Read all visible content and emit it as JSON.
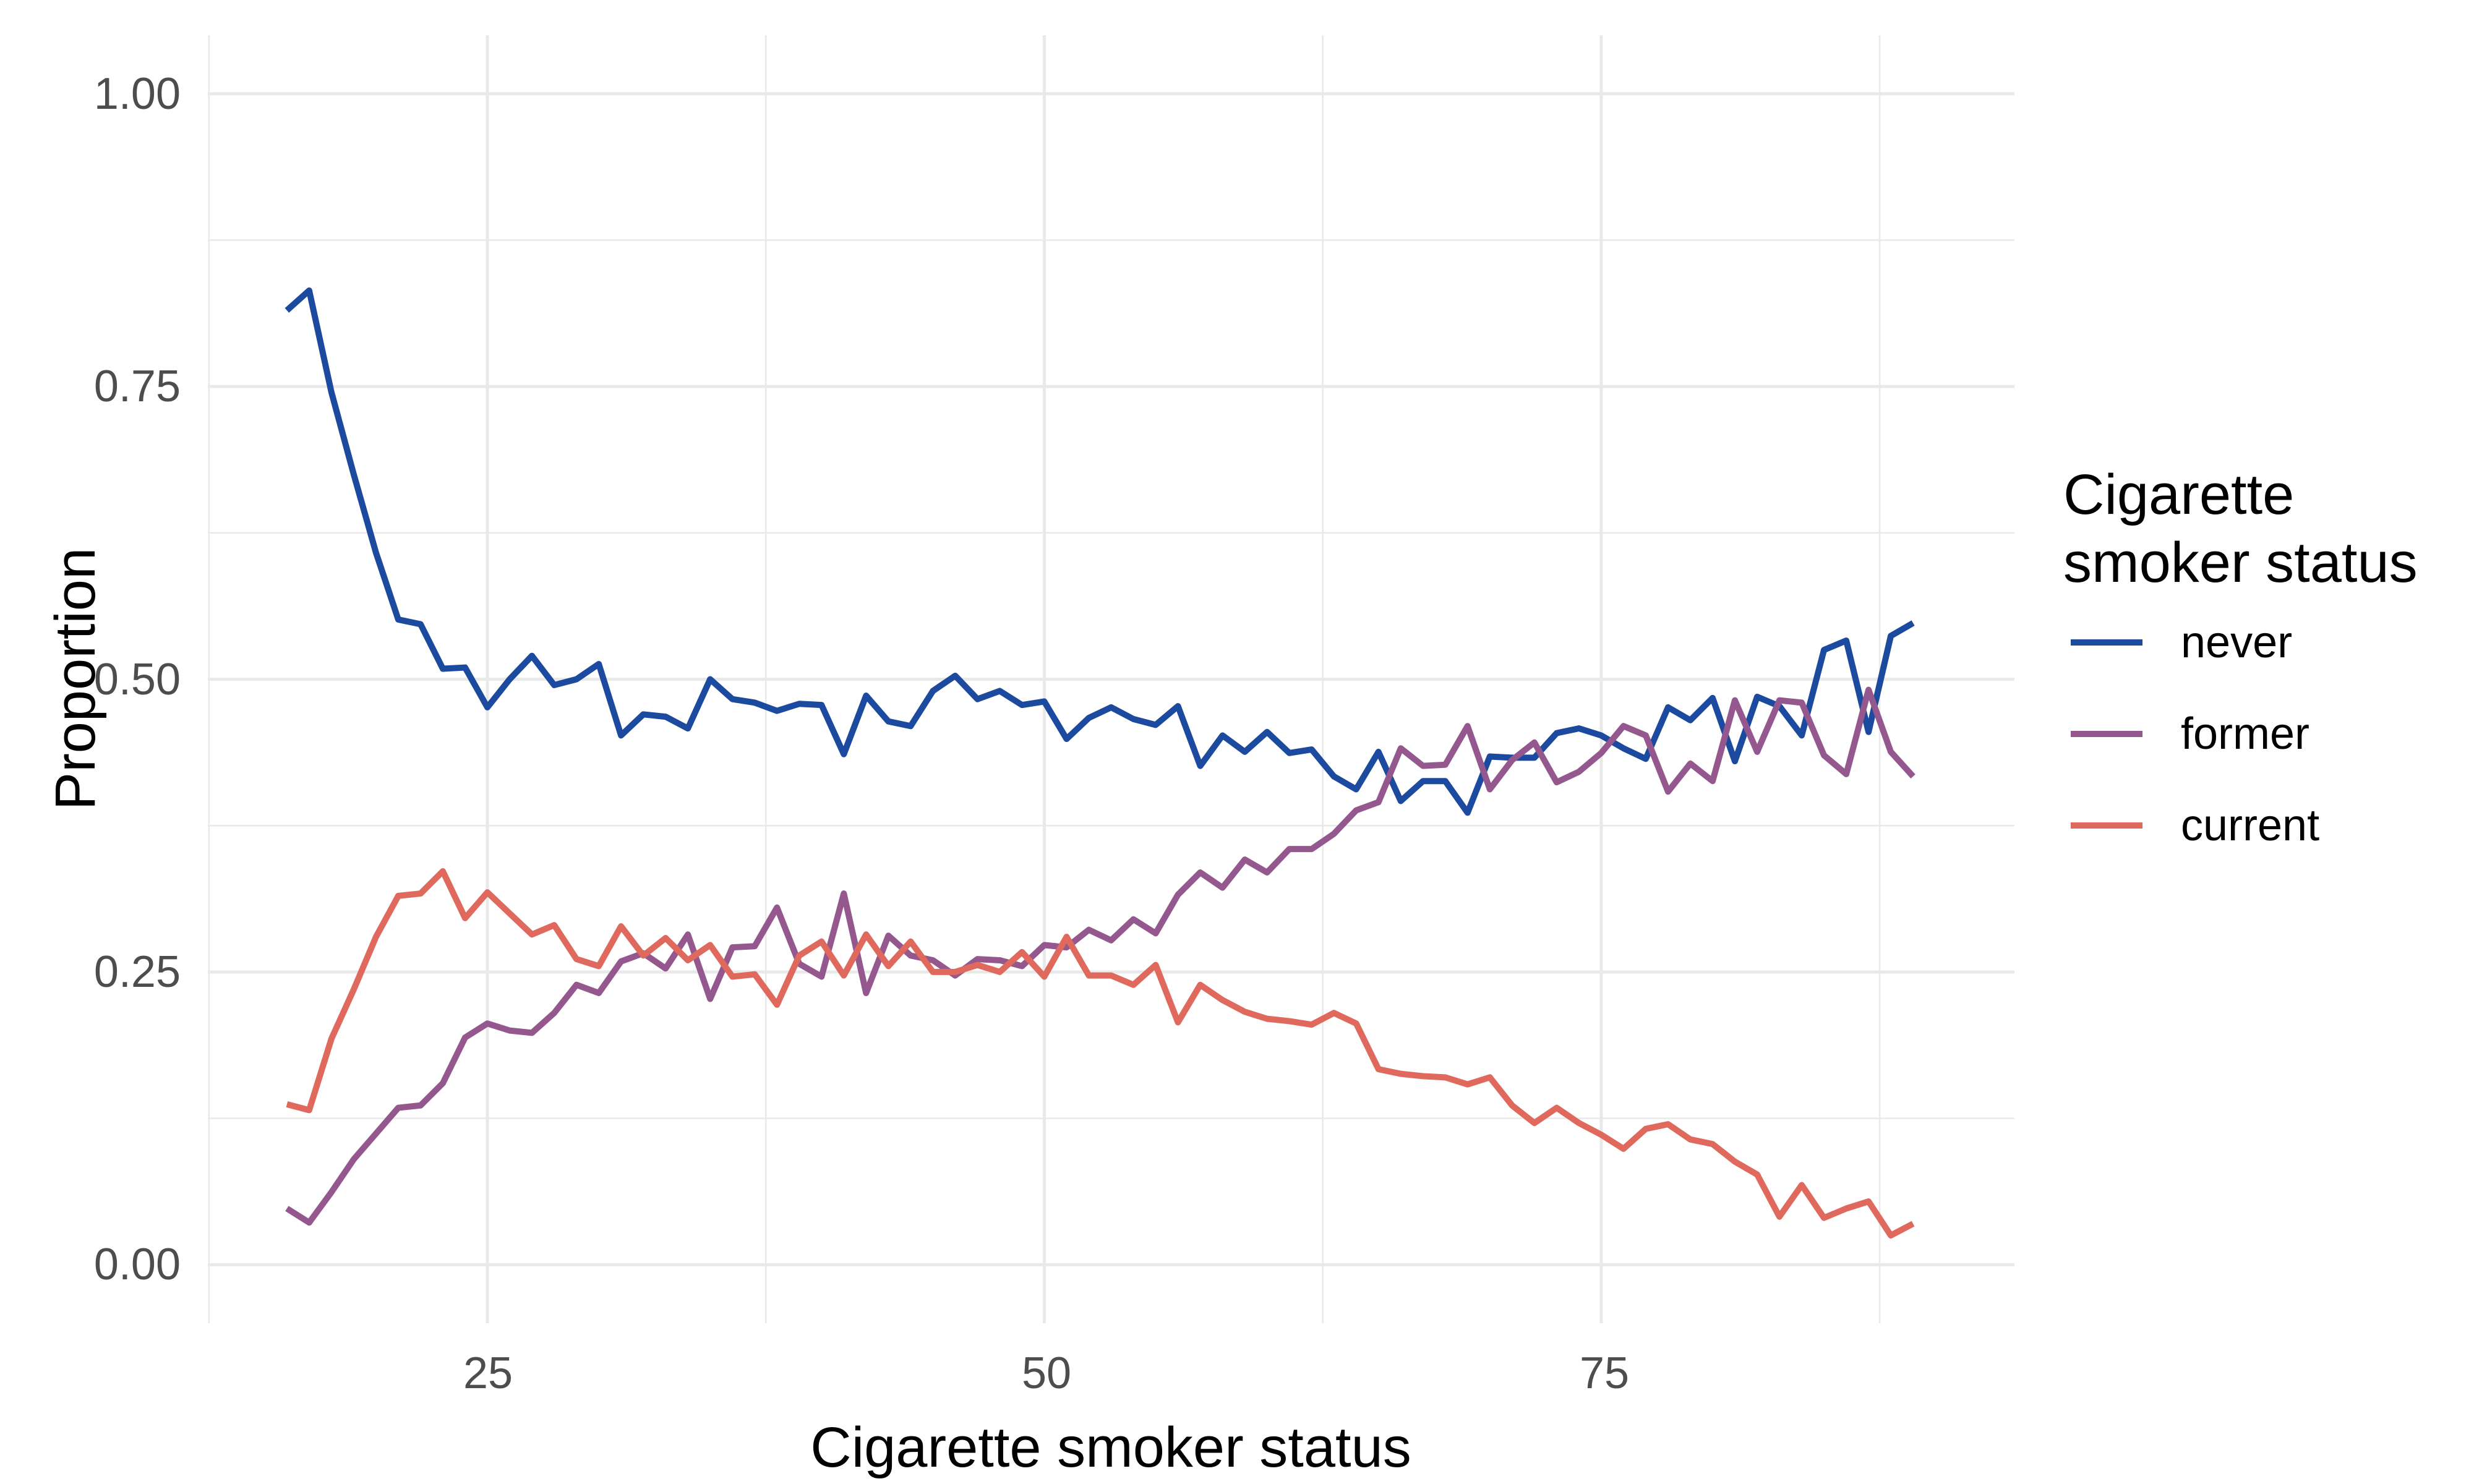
{
  "axes": {
    "x": {
      "title": "Cigarette smoker status",
      "tick_labels": [
        "25",
        "50",
        "75"
      ]
    },
    "y": {
      "title": "Proportion",
      "tick_labels": [
        "1.00",
        "0.75",
        "0.50",
        "0.25",
        "0.00"
      ]
    }
  },
  "legend": {
    "title": "Cigarette smoker status",
    "items": [
      {
        "label": "never",
        "color": "#1B4A9F"
      },
      {
        "label": "former",
        "color": "#94588E"
      },
      {
        "label": "current",
        "color": "#E0695E"
      }
    ]
  },
  "chart_data": {
    "type": "line",
    "title": "",
    "xlabel": "Cigarette smoker status",
    "ylabel": "Proportion",
    "legend_position": "right",
    "xlim": [
      12.45,
      93.55
    ],
    "ylim": [
      -0.05,
      1.05
    ],
    "x_ticks": [
      25,
      50,
      75
    ],
    "x_minor": [
      12.5,
      37.5,
      62.5,
      87.5
    ],
    "y_ticks": [
      0,
      0.25,
      0.5,
      0.75,
      1
    ],
    "y_minor": [
      0.125,
      0.375,
      0.625,
      0.875
    ],
    "grid_color": "#E9E9E9",
    "grid_major_width": 5,
    "grid_minor_width": 2.5,
    "line_width": 10,
    "x": [
      16,
      17,
      18,
      19,
      20,
      21,
      22,
      23,
      24,
      25,
      26,
      27,
      28,
      29,
      30,
      31,
      32,
      33,
      34,
      35,
      36,
      37,
      38,
      39,
      40,
      41,
      42,
      43,
      44,
      45,
      46,
      47,
      48,
      49,
      50,
      51,
      52,
      53,
      54,
      55,
      56,
      57,
      58,
      59,
      60,
      61,
      62,
      63,
      64,
      65,
      66,
      67,
      68,
      69,
      70,
      71,
      72,
      73,
      74,
      75,
      76,
      77,
      78,
      79,
      80,
      81,
      82,
      83,
      84,
      85,
      86,
      87,
      88,
      89
    ],
    "series": [
      {
        "name": "never",
        "color": "#1B4A9F",
        "values": [
          0.815,
          0.832,
          0.745,
          0.675,
          0.608,
          0.551,
          0.547,
          0.509,
          0.51,
          0.476,
          0.5,
          0.52,
          0.495,
          0.5,
          0.513,
          0.452,
          0.47,
          0.468,
          0.458,
          0.5,
          0.483,
          0.48,
          0.473,
          0.479,
          0.478,
          0.436,
          0.486,
          0.464,
          0.46,
          0.49,
          0.503,
          0.483,
          0.49,
          0.478,
          0.481,
          0.449,
          0.467,
          0.476,
          0.466,
          0.461,
          0.477,
          0.426,
          0.452,
          0.438,
          0.455,
          0.437,
          0.44,
          0.417,
          0.406,
          0.438,
          0.396,
          0.413,
          0.413,
          0.386,
          0.434,
          0.433,
          0.433,
          0.454,
          0.458,
          0.452,
          0.441,
          0.432,
          0.476,
          0.465,
          0.484,
          0.43,
          0.485,
          0.477,
          0.452,
          0.525,
          0.533,
          0.455,
          0.537,
          0.548
        ]
      },
      {
        "name": "former",
        "color": "#94588E",
        "values": [
          0.048,
          0.036,
          0.062,
          0.09,
          0.112,
          0.134,
          0.136,
          0.155,
          0.194,
          0.206,
          0.2,
          0.198,
          0.215,
          0.239,
          0.232,
          0.259,
          0.266,
          0.253,
          0.282,
          0.227,
          0.271,
          0.272,
          0.305,
          0.257,
          0.246,
          0.317,
          0.232,
          0.281,
          0.264,
          0.26,
          0.247,
          0.261,
          0.26,
          0.255,
          0.273,
          0.271,
          0.286,
          0.277,
          0.295,
          0.283,
          0.316,
          0.335,
          0.322,
          0.346,
          0.335,
          0.355,
          0.355,
          0.368,
          0.388,
          0.395,
          0.441,
          0.426,
          0.427,
          0.46,
          0.406,
          0.431,
          0.446,
          0.412,
          0.421,
          0.437,
          0.46,
          0.452,
          0.404,
          0.428,
          0.413,
          0.482,
          0.438,
          0.482,
          0.48,
          0.435,
          0.419,
          0.491,
          0.438,
          0.417
        ]
      },
      {
        "name": "current",
        "color": "#E0695E",
        "values": [
          0.137,
          0.132,
          0.193,
          0.235,
          0.28,
          0.315,
          0.317,
          0.336,
          0.296,
          0.318,
          0.3,
          0.282,
          0.29,
          0.261,
          0.255,
          0.289,
          0.264,
          0.279,
          0.26,
          0.273,
          0.246,
          0.248,
          0.222,
          0.264,
          0.276,
          0.247,
          0.282,
          0.255,
          0.276,
          0.25,
          0.25,
          0.256,
          0.25,
          0.267,
          0.246,
          0.28,
          0.247,
          0.247,
          0.239,
          0.256,
          0.207,
          0.239,
          0.226,
          0.216,
          0.21,
          0.208,
          0.205,
          0.215,
          0.206,
          0.167,
          0.163,
          0.161,
          0.16,
          0.154,
          0.16,
          0.136,
          0.121,
          0.134,
          0.121,
          0.111,
          0.099,
          0.116,
          0.12,
          0.107,
          0.103,
          0.088,
          0.077,
          0.041,
          0.068,
          0.04,
          0.048,
          0.054,
          0.025,
          0.035
        ]
      }
    ]
  }
}
